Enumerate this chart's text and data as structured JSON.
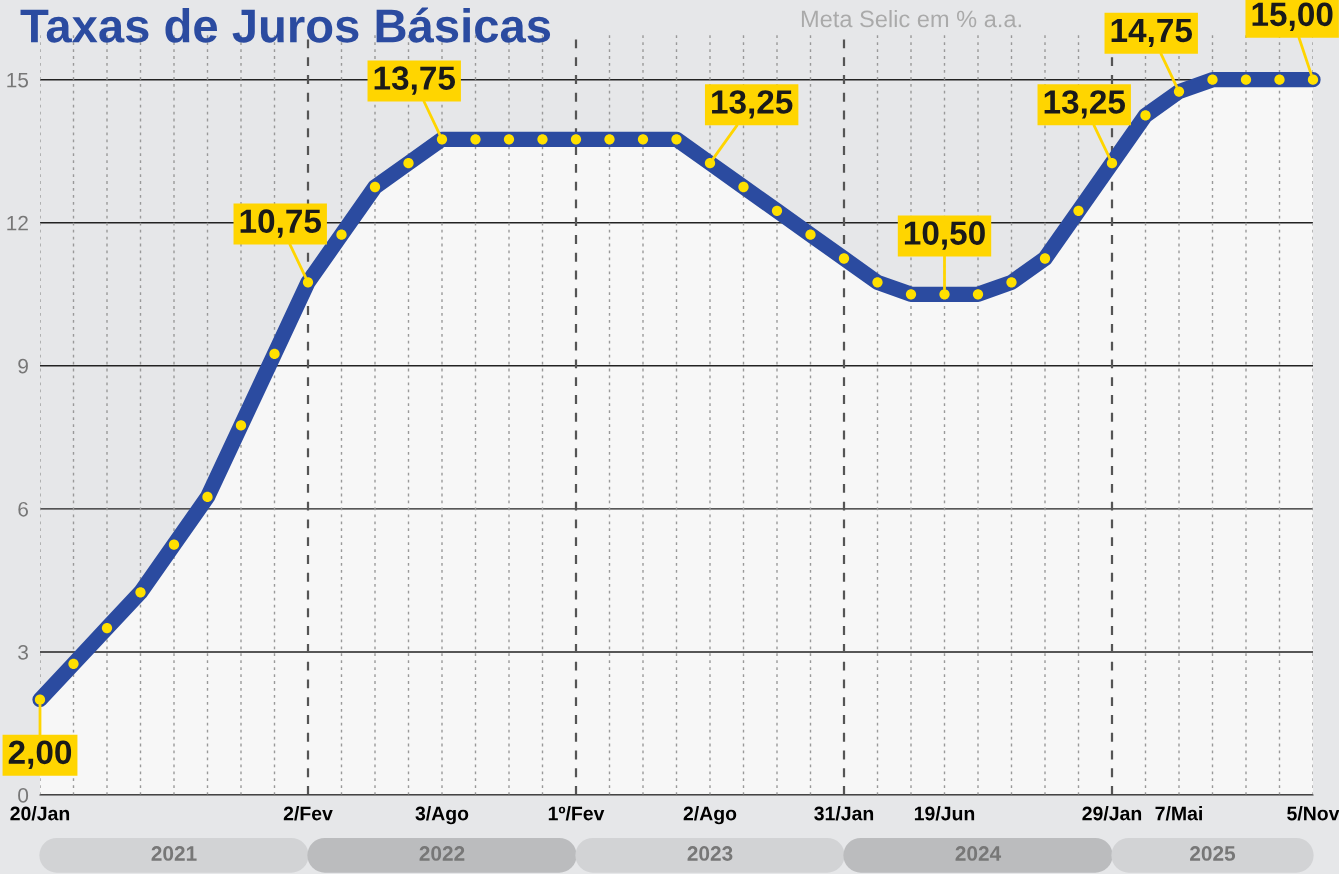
{
  "chart_data": {
    "type": "area",
    "title": "Taxas de Juros Básicas",
    "subtitle": "Meta Selic em % a.a.",
    "categories": [
      "20/Jan",
      null,
      null,
      null,
      null,
      null,
      null,
      null,
      "2/Fev",
      null,
      null,
      null,
      "3/Ago",
      null,
      null,
      null,
      "1º/Fev",
      null,
      null,
      null,
      "2/Ago",
      null,
      null,
      null,
      "31/Jan",
      null,
      null,
      "19/Jun",
      null,
      null,
      null,
      null,
      "29/Jan",
      null,
      "7/Mai",
      null,
      null,
      null,
      "5/Nov"
    ],
    "series": [
      {
        "color": "#2b4ba0",
        "values": [
          2.0,
          2.75,
          3.5,
          4.25,
          5.25,
          6.25,
          7.75,
          9.25,
          10.75,
          11.75,
          12.75,
          13.25,
          13.75,
          13.75,
          13.75,
          13.75,
          13.75,
          13.75,
          13.75,
          13.75,
          13.25,
          12.75,
          12.25,
          11.75,
          11.25,
          10.75,
          10.5,
          10.5,
          10.5,
          10.75,
          11.25,
          12.25,
          13.25,
          14.25,
          14.75,
          15.0,
          15.0,
          15.0,
          15.0
        ],
        "value_labels": [
          "2,00",
          null,
          null,
          null,
          null,
          null,
          null,
          null,
          "10,75",
          null,
          null,
          null,
          "13,75",
          null,
          null,
          null,
          null,
          null,
          null,
          null,
          "13,25",
          null,
          null,
          null,
          null,
          null,
          null,
          "10,50",
          null,
          null,
          null,
          null,
          "13,25",
          null,
          "14,75",
          null,
          null,
          null,
          "15,00"
        ]
      }
    ],
    "ylim": [
      0,
      16
    ],
    "yticks": [
      0,
      3,
      6,
      9,
      12,
      15
    ],
    "grid": true,
    "marker": "circle",
    "line_style": "solid",
    "legend": false,
    "annotations": [
      "2021",
      "2022",
      "2023",
      "2024",
      "2025"
    ]
  }
}
